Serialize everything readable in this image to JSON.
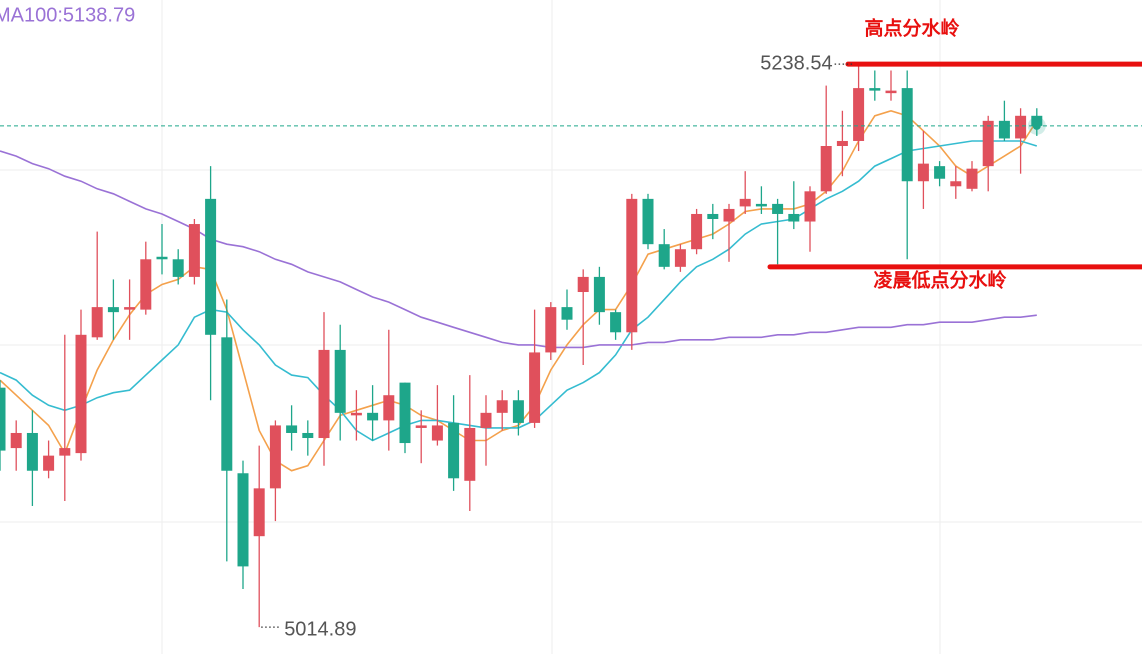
{
  "chart_data": {
    "type": "candlestick",
    "ylim": [
      5004.2,
      5264
    ],
    "up_color": "#e0505c",
    "down_color": "#1ea68a",
    "ma100_label": "MA100:5138.79",
    "ma100_color": "#9a72d6",
    "open": [
      5110,
      5086,
      5092,
      5077,
      5083,
      5084,
      5130,
      5142,
      5141,
      5141,
      5162,
      5161,
      5154,
      5185,
      5130,
      5076,
      5051,
      5070,
      5095,
      5092,
      5090,
      5125,
      5099,
      5100,
      5097,
      5112,
      5094,
      5089,
      5096,
      5073,
      5094,
      5100,
      5105,
      5096,
      5124,
      5142,
      5148,
      5154,
      5140,
      5132,
      5185,
      5167,
      5158,
      5165,
      5179,
      5176,
      5182,
      5183,
      5183,
      5179,
      5176,
      5188,
      5206,
      5208,
      5229,
      5227,
      5229,
      5192,
      5198,
      5190,
      5189,
      5198,
      5216,
      5209,
      5218
    ],
    "high": [
      5113,
      5097,
      5101,
      5089,
      5131,
      5141,
      5172,
      5153,
      5153,
      5168,
      5175,
      5165,
      5177,
      5198,
      5145,
      5081,
      5087,
      5097,
      5103,
      5097,
      5140,
      5135,
      5109,
      5111,
      5133,
      5112,
      5101,
      5111,
      5107,
      5115,
      5107,
      5109,
      5109,
      5141,
      5144,
      5149,
      5157,
      5158,
      5141,
      5187,
      5187,
      5173,
      5167,
      5181,
      5183,
      5183,
      5196,
      5190,
      5185,
      5192,
      5190,
      5230,
      5220,
      5238.54,
      5236,
      5236,
      5236,
      5212,
      5200,
      5198,
      5200,
      5218,
      5224,
      5221,
      5221
    ],
    "low": [
      5077,
      5077,
      5063,
      5074,
      5065,
      5081,
      5129,
      5129,
      5129,
      5139,
      5155,
      5151,
      5151,
      5105,
      5041,
      5030,
      5014.89,
      5057,
      5085,
      5083,
      5079,
      5089,
      5089,
      5089,
      5085,
      5084,
      5080,
      5087,
      5069,
      5061,
      5079,
      5093,
      5091,
      5094,
      5121,
      5133,
      5119,
      5135,
      5129,
      5125,
      5165,
      5157,
      5156,
      5163,
      5169,
      5160,
      5179,
      5179,
      5159,
      5173,
      5164,
      5187,
      5194,
      5204,
      5224,
      5224,
      5161,
      5181,
      5190,
      5185,
      5188,
      5188,
      5208,
      5195,
      5210
    ],
    "close": [
      5085,
      5092,
      5077,
      5083,
      5086,
      5131,
      5142,
      5140,
      5142,
      5161,
      5161,
      5154,
      5175,
      5131,
      5077,
      5039,
      5070,
      5095,
      5092,
      5090,
      5125,
      5100,
      5100,
      5097,
      5107,
      5088,
      5095,
      5095,
      5074,
      5094,
      5100,
      5105,
      5096,
      5124,
      5142,
      5137,
      5154,
      5140,
      5132,
      5185,
      5167,
      5158,
      5165,
      5179,
      5177,
      5181,
      5185,
      5182,
      5179,
      5176,
      5188,
      5206,
      5208,
      5229,
      5228,
      5228,
      5192,
      5199,
      5193,
      5192,
      5197,
      5216,
      5209,
      5218,
      5214
    ],
    "ma_lines": [
      {
        "color": "#f4a14c",
        "values": [
          5113,
          5107,
          5101,
          5095,
          5084,
          5101,
          5117,
          5129,
          5139,
          5147,
          5151,
          5153,
          5158,
          5157,
          5141,
          5117,
          5093,
          5081,
          5077,
          5079,
          5089,
          5099,
          5101,
          5103,
          5105,
          5103,
          5099,
          5097,
          5093,
          5089,
          5089,
          5093,
          5095,
          5103,
          5117,
          5127,
          5135,
          5141,
          5141,
          5151,
          5163,
          5165,
          5167,
          5169,
          5171,
          5175,
          5180,
          5181,
          5181,
          5181,
          5183,
          5188,
          5196,
          5208,
          5218,
          5220,
          5218,
          5212,
          5206,
          5198,
          5194,
          5198,
          5202,
          5206,
          5216
        ]
      },
      {
        "color": "#35bcd0",
        "values": [
          5116,
          5113,
          5107,
          5103,
          5101,
          5103,
          5106,
          5108,
          5109,
          5115,
          5121,
          5127,
          5138,
          5141,
          5140,
          5133,
          5127,
          5119,
          5115,
          5114,
          5107,
          5101,
          5093,
          5089,
          5092,
          5095,
          5097,
          5097,
          5096,
          5095,
          5094,
          5094,
          5094,
          5097,
          5103,
          5109,
          5112,
          5116,
          5123,
          5133,
          5138,
          5145,
          5152,
          5158,
          5161,
          5165,
          5171,
          5175,
          5176,
          5177,
          5181,
          5185,
          5188,
          5192,
          5198,
          5201,
          5204,
          5205,
          5206,
          5207,
          5208,
          5208,
          5208,
          5208,
          5206
        ]
      },
      {
        "color": "#9a72d6",
        "values": [
          5204,
          5202,
          5199,
          5197,
          5194,
          5192,
          5189,
          5187,
          5184,
          5181,
          5179,
          5176,
          5173,
          5169,
          5167,
          5166,
          5164,
          5161,
          5159,
          5156,
          5154,
          5152,
          5149,
          5146,
          5144,
          5141,
          5138,
          5136,
          5134,
          5132,
          5130,
          5128,
          5127,
          5127,
          5126,
          5126,
          5126,
          5127,
          5127,
          5127,
          5128,
          5128,
          5129,
          5129,
          5129,
          5130,
          5130,
          5130,
          5131,
          5131,
          5132,
          5132,
          5133,
          5134,
          5134,
          5134,
          5135,
          5135,
          5136,
          5136,
          5136,
          5137,
          5138,
          5138,
          5138.79
        ]
      }
    ],
    "levels": [
      {
        "label": "高点分水岭",
        "value": 5238.54,
        "color": "#e8100f"
      },
      {
        "label": "凌晨低点分水岭",
        "value": 5158,
        "color": "#e8100f"
      }
    ]
  }
}
